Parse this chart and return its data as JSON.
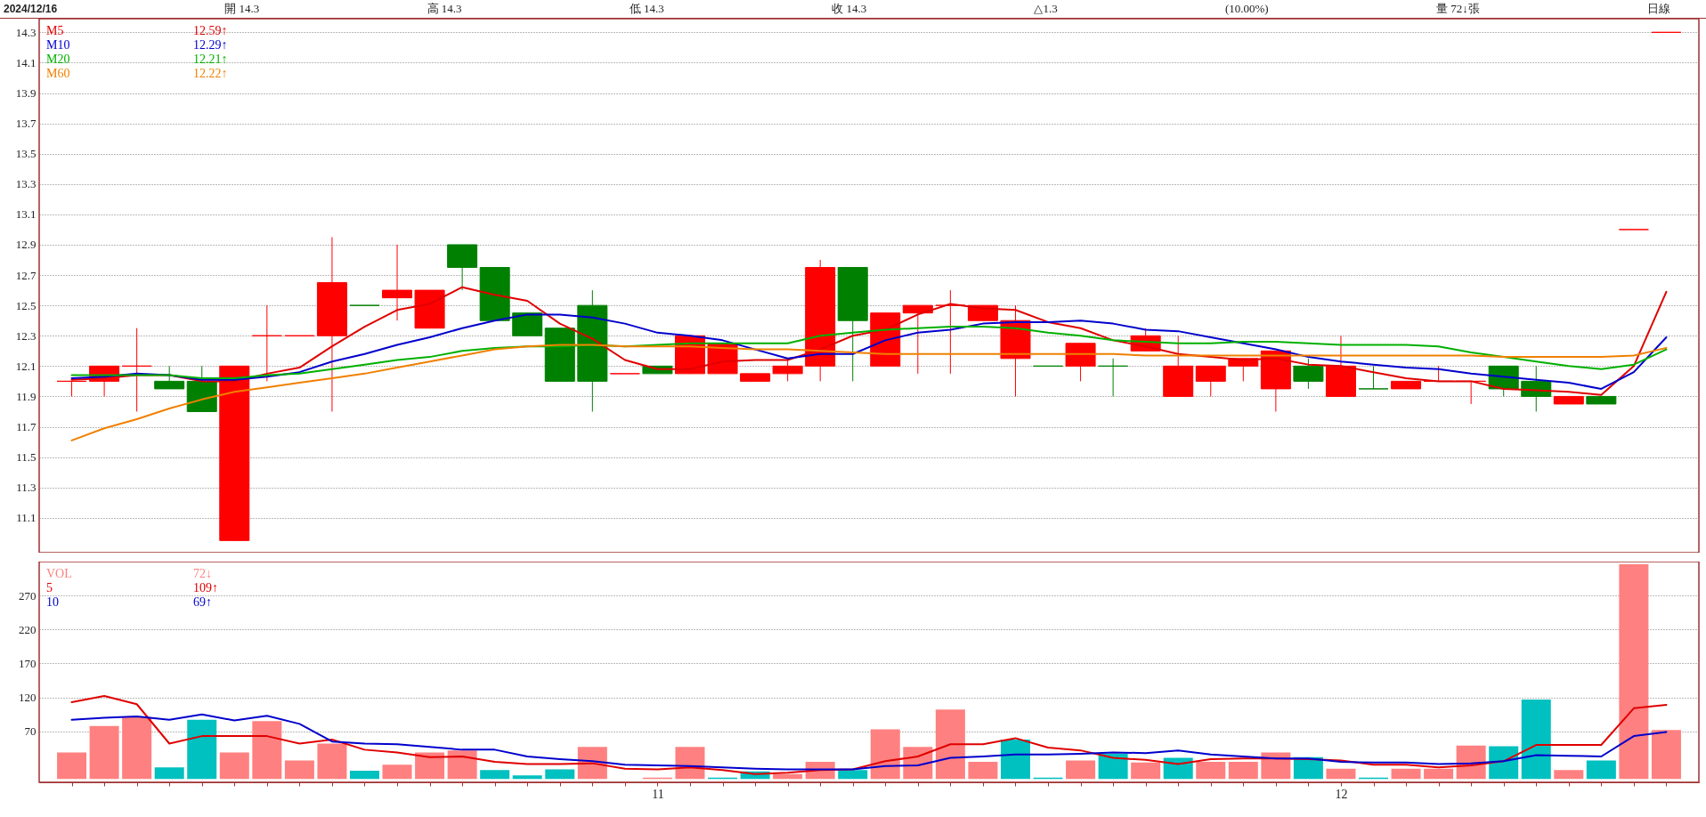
{
  "chart_data": [
    {
      "type": "candlestick",
      "title": "2024/12/16",
      "annotations": [
        "開 14.3",
        "高 14.3",
        "低 14.3",
        "收 14.3",
        "△1.3",
        "(10.00%)",
        "量 72↓張",
        "日線",
        "12.59↑",
        "12.29↑",
        "12.21↑",
        "12.22↑"
      ],
      "categories": [
        null,
        null,
        null,
        null,
        null,
        null,
        null,
        null,
        null,
        null,
        null,
        null,
        null,
        null,
        null,
        null,
        null,
        null,
        "11",
        null,
        null,
        null,
        null,
        null,
        null,
        null,
        null,
        null,
        null,
        null,
        null,
        null,
        null,
        null,
        null,
        null,
        null,
        null,
        null,
        "12",
        null,
        null,
        null,
        null,
        null,
        null,
        null,
        null,
        null,
        null
      ],
      "ohlc": [
        [
          12.0,
          12.0,
          11.9,
          12.0
        ],
        [
          12.0,
          12.1,
          11.9,
          12.1
        ],
        [
          12.1,
          12.35,
          11.8,
          12.1
        ],
        [
          12.0,
          12.1,
          11.95,
          11.95
        ],
        [
          12.0,
          12.1,
          11.8,
          11.8
        ],
        [
          10.95,
          12.1,
          10.95,
          12.1
        ],
        [
          12.3,
          12.5,
          12.0,
          12.3
        ],
        [
          12.3,
          12.3,
          12.3,
          12.3
        ],
        [
          12.3,
          12.95,
          11.8,
          12.65
        ],
        [
          12.5,
          12.5,
          12.5,
          12.5
        ],
        [
          12.55,
          12.9,
          12.4,
          12.6
        ],
        [
          12.35,
          12.6,
          12.35,
          12.6
        ],
        [
          12.9,
          12.9,
          12.6,
          12.75
        ],
        [
          12.75,
          12.75,
          12.4,
          12.4
        ],
        [
          12.45,
          12.45,
          12.3,
          12.3
        ],
        [
          12.35,
          12.35,
          12.0,
          12.0
        ],
        [
          12.5,
          12.6,
          11.8,
          12.0
        ],
        [
          12.05,
          12.05,
          12.05,
          12.05
        ],
        [
          12.1,
          12.1,
          12.05,
          12.05
        ],
        [
          12.05,
          12.3,
          12.05,
          12.3
        ],
        [
          12.05,
          12.25,
          12.05,
          12.25
        ],
        [
          12.0,
          12.05,
          12.0,
          12.05
        ],
        [
          12.05,
          12.15,
          12.0,
          12.1
        ],
        [
          12.1,
          12.8,
          12.0,
          12.75
        ],
        [
          12.75,
          12.75,
          12.0,
          12.4
        ],
        [
          12.1,
          12.45,
          12.1,
          12.45
        ],
        [
          12.45,
          12.5,
          12.05,
          12.5
        ],
        [
          12.5,
          12.6,
          12.05,
          12.5
        ],
        [
          12.4,
          12.5,
          12.4,
          12.5
        ],
        [
          12.15,
          12.5,
          11.9,
          12.4
        ],
        [
          12.1,
          12.1,
          12.1,
          12.1
        ],
        [
          12.1,
          12.25,
          12.0,
          12.25
        ],
        [
          12.1,
          12.15,
          11.9,
          12.1
        ],
        [
          12.2,
          12.35,
          12.2,
          12.3
        ],
        [
          11.9,
          12.3,
          11.9,
          12.1
        ],
        [
          12.0,
          12.1,
          11.9,
          12.1
        ],
        [
          12.1,
          12.15,
          12.0,
          12.15
        ],
        [
          11.95,
          12.2,
          11.8,
          12.2
        ],
        [
          12.1,
          12.15,
          11.95,
          12.0
        ],
        [
          11.9,
          12.3,
          11.9,
          12.1
        ],
        [
          11.95,
          12.1,
          11.95,
          11.95
        ],
        [
          11.95,
          12.0,
          11.95,
          12.0
        ],
        [
          12.0,
          12.1,
          12.0,
          12.0
        ],
        [
          12.0,
          12.0,
          11.85,
          12.0
        ],
        [
          12.1,
          12.1,
          11.9,
          11.95
        ],
        [
          12.0,
          12.1,
          11.8,
          11.9
        ],
        [
          11.85,
          11.9,
          11.85,
          11.9
        ],
        [
          11.9,
          11.9,
          11.85,
          11.85
        ],
        [
          13.0,
          13.0,
          13.0,
          13.0
        ],
        [
          14.3,
          14.3,
          14.3,
          14.3
        ]
      ],
      "colors": [
        "#ff0000",
        "#ff0000",
        "#ff0000",
        "#008000",
        "#008000",
        "#ff0000",
        "#ff0000",
        "#ff0000",
        "#ff0000",
        "#008000",
        "#ff0000",
        "#ff0000",
        "#008000",
        "#008000",
        "#008000",
        "#008000",
        "#008000",
        "#ff0000",
        "#008000",
        "#ff0000",
        "#ff0000",
        "#ff0000",
        "#ff0000",
        "#ff0000",
        "#008000",
        "#ff0000",
        "#ff0000",
        "#ff0000",
        "#ff0000",
        "#ff0000",
        "#008000",
        "#ff0000",
        "#008000",
        "#ff0000",
        "#ff0000",
        "#ff0000",
        "#ff0000",
        "#ff0000",
        "#008000",
        "#ff0000",
        "#008000",
        "#ff0000",
        "#ff0000",
        "#ff0000",
        "#008000",
        "#008000",
        "#ff0000",
        "#008000",
        "#ff0000",
        "#ff0000"
      ],
      "series": [
        {
          "name": "M5",
          "type": "line",
          "color": "#e00000",
          "values": [
            12.01,
            12.02,
            12.04,
            12.04,
            12.0,
            12.0,
            12.05,
            12.09,
            12.23,
            12.36,
            12.47,
            12.51,
            12.62,
            12.57,
            12.53,
            12.38,
            12.28,
            12.14,
            12.08,
            12.08,
            12.13,
            12.14,
            12.14,
            12.21,
            12.3,
            12.34,
            12.44,
            12.51,
            12.48,
            12.47,
            12.39,
            12.35,
            12.27,
            12.23,
            12.18,
            12.16,
            12.14,
            12.15,
            12.11,
            12.1,
            12.06,
            12.02,
            12.0,
            12.0,
            11.95,
            11.94,
            11.93,
            11.91,
            12.1,
            12.59
          ]
        },
        {
          "name": "M10",
          "type": "line",
          "color": "#0000cc",
          "values": [
            12.02,
            12.03,
            12.05,
            12.04,
            12.01,
            12.01,
            12.03,
            12.06,
            12.13,
            12.18,
            12.24,
            12.29,
            12.35,
            12.4,
            12.44,
            12.44,
            12.42,
            12.38,
            12.32,
            12.3,
            12.27,
            12.21,
            12.15,
            12.18,
            12.18,
            12.27,
            12.32,
            12.34,
            12.38,
            12.39,
            12.39,
            12.4,
            12.38,
            12.34,
            12.33,
            12.29,
            12.25,
            12.21,
            12.16,
            12.13,
            12.11,
            12.09,
            12.08,
            12.05,
            12.03,
            12.01,
            11.99,
            11.95,
            12.06,
            12.29
          ]
        },
        {
          "name": "M20",
          "type": "line",
          "color": "#00b000",
          "values": [
            12.04,
            12.04,
            12.04,
            12.04,
            12.02,
            12.02,
            12.04,
            12.05,
            12.08,
            12.11,
            12.14,
            12.16,
            12.2,
            12.22,
            12.23,
            12.23,
            12.24,
            12.23,
            12.24,
            12.25,
            12.25,
            12.25,
            12.25,
            12.3,
            12.32,
            12.34,
            12.35,
            12.36,
            12.36,
            12.35,
            12.32,
            12.3,
            12.27,
            12.26,
            12.25,
            12.25,
            12.26,
            12.26,
            12.25,
            12.24,
            12.24,
            12.24,
            12.23,
            12.19,
            12.16,
            12.13,
            12.1,
            12.08,
            12.11,
            12.21
          ]
        },
        {
          "name": "M60",
          "type": "line",
          "color": "#f08000",
          "values": [
            11.61,
            11.69,
            11.75,
            11.82,
            11.88,
            11.93,
            11.96,
            11.99,
            12.02,
            12.05,
            12.09,
            12.13,
            12.17,
            12.21,
            12.23,
            12.24,
            12.24,
            12.23,
            12.23,
            12.23,
            12.22,
            12.21,
            12.21,
            12.2,
            12.19,
            12.18,
            12.18,
            12.18,
            12.18,
            12.18,
            12.18,
            12.18,
            12.18,
            12.17,
            12.17,
            12.17,
            12.17,
            12.17,
            12.17,
            12.17,
            12.17,
            12.17,
            12.17,
            12.17,
            12.16,
            12.16,
            12.16,
            12.16,
            12.17,
            12.22
          ]
        }
      ],
      "ylim": [
        10.87,
        14.39
      ],
      "yticks": [
        11.1,
        11.3,
        11.5,
        11.7,
        11.9,
        12.1,
        12.3,
        12.5,
        12.7,
        12.9,
        13.1,
        13.3,
        13.5,
        13.7,
        13.9,
        14.1,
        14.3
      ],
      "grid": "y",
      "legend": "top left",
      "tick_labels": "y"
    },
    {
      "type": "bar",
      "annotations": [
        "72↓",
        "109↑",
        "69↑"
      ],
      "categories": [
        null,
        null,
        null,
        null,
        null,
        null,
        null,
        null,
        null,
        null,
        null,
        null,
        null,
        null,
        null,
        null,
        null,
        null,
        "11",
        null,
        null,
        null,
        null,
        null,
        null,
        null,
        null,
        null,
        null,
        null,
        null,
        null,
        null,
        null,
        null,
        null,
        null,
        null,
        null,
        "12",
        null,
        null,
        null,
        null,
        null,
        null,
        null,
        null,
        null,
        null
      ],
      "series": [
        {
          "name": "VOL",
          "type": "bar",
          "colors": [
            "#ff8080",
            "#ff8080",
            "#ff8080",
            "#00c0c0",
            "#00c0c0",
            "#ff8080",
            "#ff8080",
            "#ff8080",
            "#ff8080",
            "#00c0c0",
            "#ff8080",
            "#ff8080",
            "#ff8080",
            "#00c0c0",
            "#00c0c0",
            "#00c0c0",
            "#ff8080",
            "#ff8080",
            "#ff8080",
            "#ff8080",
            "#00c0c0",
            "#00c0c0",
            "#ff8080",
            "#ff8080",
            "#00c0c0",
            "#ff8080",
            "#ff8080",
            "#ff8080",
            "#ff8080",
            "#00c0c0",
            "#00c0c0",
            "#ff8080",
            "#00c0c0",
            "#ff8080",
            "#00c0c0",
            "#ff8080",
            "#ff8080",
            "#ff8080",
            "#00c0c0",
            "#ff8080",
            "#00c0c0",
            "#ff8080",
            "#ff8080",
            "#ff8080",
            "#00c0c0",
            "#00c0c0",
            "#ff8080",
            "#00c0c0",
            "#ff8080",
            "#ff8080"
          ],
          "values": [
            39,
            78,
            91,
            17,
            87,
            39,
            85,
            27,
            52,
            12,
            21,
            39,
            42,
            13,
            5,
            14,
            47,
            0,
            2,
            47,
            2,
            11,
            7,
            25,
            13,
            73,
            47,
            102,
            25,
            58,
            2,
            27,
            37,
            24,
            31,
            25,
            25,
            39,
            32,
            15,
            2,
            15,
            15,
            49,
            48,
            117,
            13,
            27,
            316,
            72
          ]
        },
        {
          "name": "5",
          "type": "line",
          "color": "#e00000",
          "values": [
            113,
            122,
            110,
            52,
            63,
            63,
            63,
            52,
            58,
            43,
            39,
            32,
            33,
            25,
            22,
            22,
            23,
            15,
            14,
            17,
            13,
            7,
            9,
            13,
            14,
            26,
            33,
            51,
            51,
            60,
            46,
            42,
            31,
            28,
            22,
            29,
            30,
            30,
            29,
            27,
            21,
            21,
            17,
            20,
            26,
            50,
            50,
            50,
            104,
            109
          ]
        },
        {
          "name": "10",
          "type": "line",
          "color": "#0000cc",
          "values": [
            87,
            90,
            92,
            87,
            95,
            86,
            93,
            81,
            55,
            52,
            51,
            47,
            43,
            43,
            33,
            29,
            26,
            21,
            20,
            19,
            17,
            15,
            14,
            14,
            14,
            19,
            20,
            31,
            33,
            36,
            36,
            37,
            39,
            38,
            42,
            36,
            33,
            30,
            30,
            25,
            24,
            24,
            22,
            23,
            26,
            35,
            34,
            33,
            63,
            69
          ]
        }
      ],
      "ylim": [
        -5,
        320
      ],
      "yticks": [
        70,
        120,
        170,
        220,
        270
      ],
      "grid": "y",
      "legend": "top left"
    }
  ]
}
